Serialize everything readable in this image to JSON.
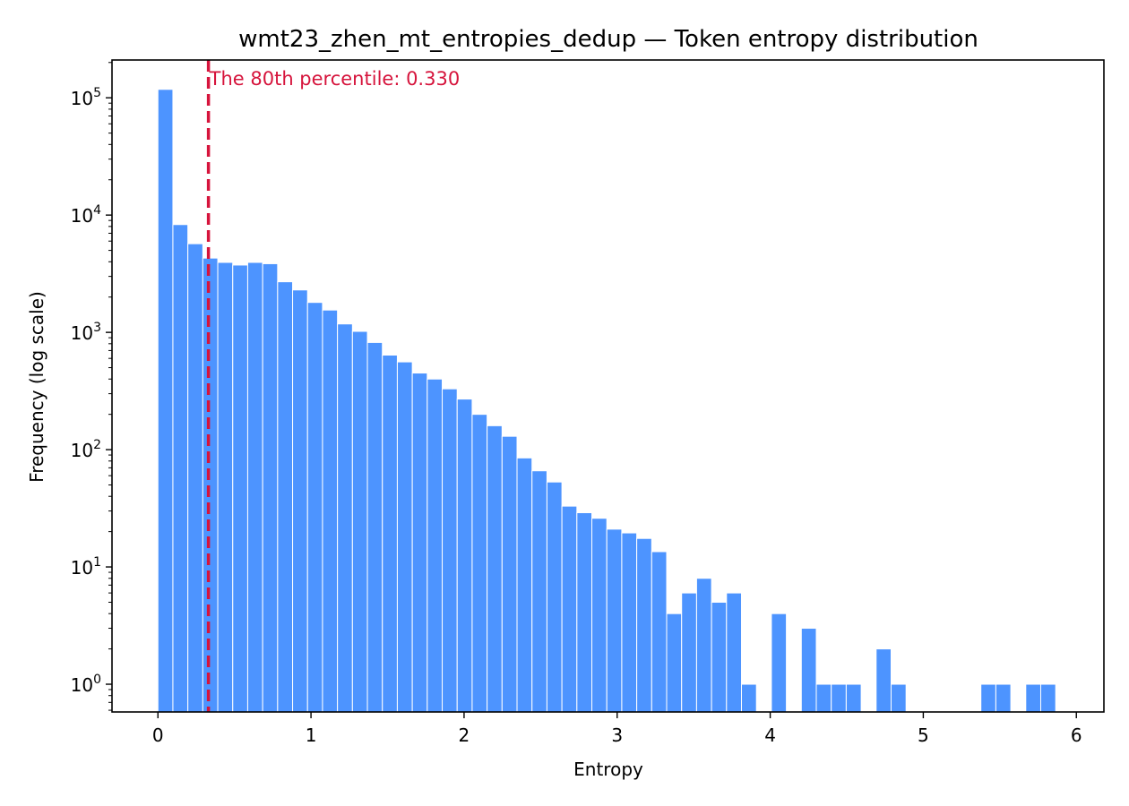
{
  "chart_data": {
    "type": "bar",
    "title": "wmt23_zhen_mt_entropies_dedup — Token entropy distribution",
    "xlabel": "Entropy",
    "ylabel": "Frequency (log scale)",
    "yscale": "log",
    "xlim": [
      -0.3,
      6.18
    ],
    "ylim": [
      0.58,
      210000
    ],
    "grid": false,
    "bar_color": "#4d94ff",
    "bar_edge_color": "#ffffff",
    "bin_width": 0.09775,
    "bin_start": 0.0,
    "x_ticks": [
      {
        "value": 0,
        "label": "0"
      },
      {
        "value": 1,
        "label": "1"
      },
      {
        "value": 2,
        "label": "2"
      },
      {
        "value": 3,
        "label": "3"
      },
      {
        "value": 4,
        "label": "4"
      },
      {
        "value": 5,
        "label": "5"
      },
      {
        "value": 6,
        "label": "6"
      }
    ],
    "y_ticks": [
      {
        "value": 1,
        "base": "10",
        "exp": "0"
      },
      {
        "value": 10,
        "base": "10",
        "exp": "1"
      },
      {
        "value": 100,
        "base": "10",
        "exp": "2"
      },
      {
        "value": 1000,
        "base": "10",
        "exp": "3"
      },
      {
        "value": 10000,
        "base": "10",
        "exp": "4"
      },
      {
        "value": 100000,
        "base": "10",
        "exp": "5"
      }
    ],
    "values": [
      118000,
      8300,
      5700,
      4300,
      3950,
      3750,
      3950,
      3850,
      2700,
      2300,
      1800,
      1550,
      1180,
      1020,
      820,
      640,
      560,
      450,
      400,
      330,
      270,
      200,
      160,
      130,
      85,
      66,
      53,
      33,
      29,
      26,
      21,
      19.5,
      17.5,
      13.5,
      4,
      6,
      8,
      5,
      6,
      1,
      0,
      4,
      0,
      3,
      1,
      1,
      1,
      0,
      2,
      1,
      0,
      0,
      0,
      0,
      0,
      1,
      1,
      0,
      1,
      1
    ],
    "percentile_line": {
      "value": 0.33,
      "label": "The 80th percentile: 0.330",
      "color": "#d6143c"
    }
  }
}
